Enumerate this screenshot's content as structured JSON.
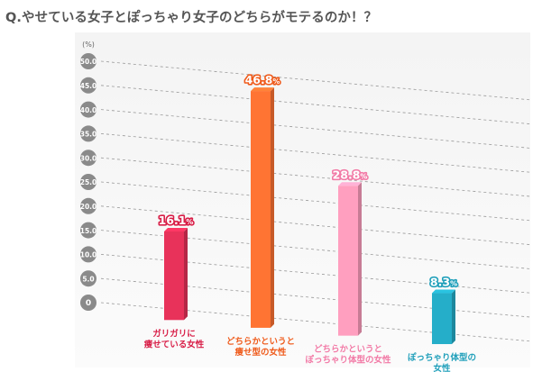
{
  "title": "Q.やせている女子とぽっちゃり女子のどちらがモテるのか！？",
  "chart_data": {
    "type": "bar",
    "title": "Q.やせている女子とぽっちゃり女子のどちらがモテるのか！？",
    "unit_label": "(%)",
    "ylim": [
      0,
      50
    ],
    "y_ticks": [
      "0",
      "5.0",
      "10.0",
      "15.0",
      "20.0",
      "25.0",
      "30.0",
      "35.0",
      "40.0",
      "45.0",
      "50.0"
    ],
    "grid": true,
    "categories": [
      [
        "ガリガリに",
        "痩せている女性"
      ],
      [
        "どちらかというと",
        "痩せ型の女性"
      ],
      [
        "どちらかというと",
        "ぽっちゃり体型の女性"
      ],
      [
        "ぽっちゃり体型の",
        "女性"
      ]
    ],
    "values": [
      16.1,
      46.8,
      28.8,
      8.3
    ],
    "value_labels": [
      "16.1%",
      "46.8%",
      "28.8%",
      "8.3%"
    ],
    "colors": [
      "#e8325a",
      "#ff7433",
      "#ff9fbf",
      "#25aec9"
    ],
    "label_colors": [
      "#d81e47",
      "#ef5a1a",
      "#f27aa6",
      "#1f9fba"
    ]
  }
}
